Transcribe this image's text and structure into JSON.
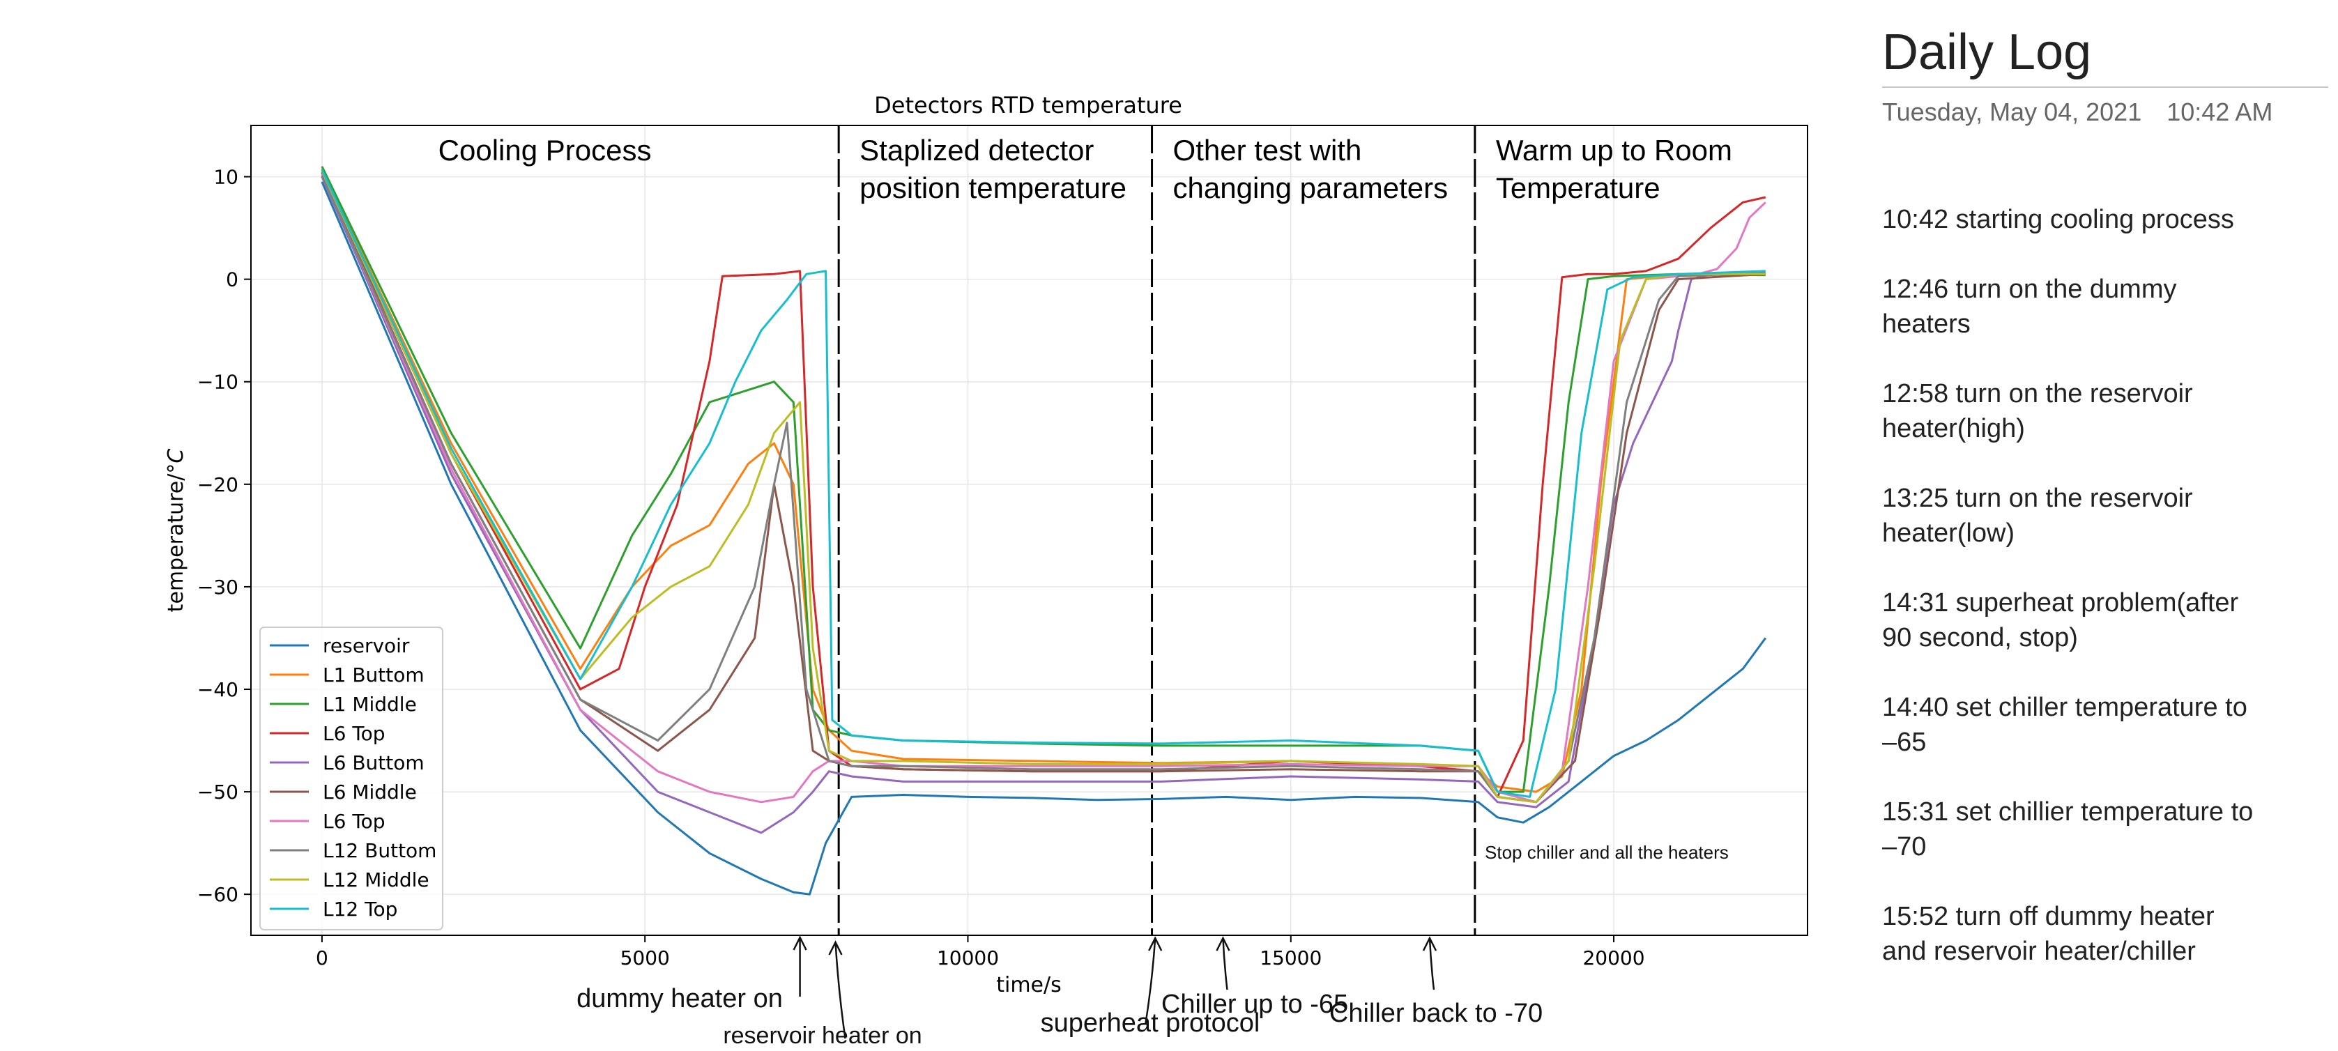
{
  "chart_data": {
    "type": "line",
    "title": "Detectors RTD temperature",
    "xlabel": "time/s",
    "ylabel": "temperature/$^\\circ C$",
    "xlim": [
      -1100,
      23000
    ],
    "ylim": [
      -64,
      15
    ],
    "xticks": [
      0,
      5000,
      10000,
      15000,
      20000
    ],
    "yticks": [
      10,
      0,
      -10,
      -20,
      -30,
      -40,
      -50,
      -60
    ],
    "grid": true,
    "legend_position": "lower-left",
    "series": [
      {
        "name": "reservoir",
        "color": "#1f77b4",
        "x": [
          0,
          2000,
          4000,
          5200,
          6000,
          6800,
          7300,
          7550,
          7800,
          8200,
          9000,
          10000,
          11000,
          12000,
          13000,
          14000,
          15000,
          16000,
          17000,
          17900,
          18200,
          18600,
          19000,
          19500,
          20000,
          20500,
          21000,
          21500,
          22000,
          22350
        ],
        "y": [
          9.5,
          -20,
          -44,
          -52,
          -56,
          -58.5,
          -59.8,
          -60,
          -55,
          -50.5,
          -50.3,
          -50.5,
          -50.6,
          -50.8,
          -50.7,
          -50.5,
          -50.8,
          -50.5,
          -50.6,
          -51,
          -52.5,
          -53,
          -51.5,
          -49,
          -46.5,
          -45,
          -43,
          -40.5,
          -38,
          -35
        ]
      },
      {
        "name": "L1 Buttom",
        "color": "#ff7f0e",
        "x": [
          0,
          2000,
          4000,
          4800,
          5400,
          6000,
          6600,
          7000,
          7300,
          7600,
          7850,
          8200,
          9000,
          11000,
          13000,
          15000,
          17000,
          17900,
          18200,
          18800,
          19200,
          19500,
          19800,
          20200,
          21000,
          22350
        ],
        "y": [
          10.8,
          -16,
          -38,
          -30,
          -26,
          -24,
          -18,
          -16,
          -20,
          -40,
          -44,
          -46,
          -46.8,
          -47,
          -47.2,
          -47,
          -47.5,
          -48,
          -49.5,
          -50,
          -48.5,
          -40,
          -20,
          0,
          0.5,
          0.5
        ]
      },
      {
        "name": "L1 Middle",
        "color": "#2ca02c",
        "x": [
          0,
          2000,
          4000,
          4800,
          5400,
          6000,
          6500,
          7000,
          7300,
          7600,
          7850,
          8200,
          9000,
          11000,
          13000,
          15000,
          17000,
          17900,
          18200,
          18600,
          19000,
          19300,
          19600,
          20000,
          21000,
          22350
        ],
        "y": [
          11,
          -15,
          -36,
          -25,
          -19,
          -12,
          -11,
          -10,
          -12,
          -42,
          -44,
          -44.5,
          -45,
          -45.3,
          -45.5,
          -45.5,
          -45.5,
          -46,
          -50,
          -50,
          -30,
          -12,
          0,
          0.3,
          0.5,
          0.4
        ]
      },
      {
        "name": "L6 Top",
        "color": "#d62728",
        "x": [
          0,
          2000,
          4000,
          4600,
          5000,
          5500,
          6000,
          6200,
          7000,
          7400,
          7600,
          7850,
          8200,
          9000,
          11000,
          13000,
          15000,
          17000,
          17900,
          18200,
          18600,
          18900,
          19200,
          19600,
          20000,
          20500,
          21000,
          21500,
          22000,
          22350
        ],
        "y": [
          10.5,
          -17,
          -40,
          -38,
          -30,
          -22,
          -8,
          0.3,
          0.5,
          0.8,
          -30,
          -46,
          -47.5,
          -47.8,
          -48,
          -48,
          -47,
          -47.5,
          -48,
          -50.5,
          -45,
          -20,
          0.2,
          0.5,
          0.5,
          0.8,
          2,
          5,
          7.5,
          8
        ]
      },
      {
        "name": "L6 Buttom",
        "color": "#9467bd",
        "x": [
          0,
          2000,
          4000,
          5200,
          6000,
          6800,
          7300,
          7600,
          7850,
          8200,
          9000,
          11000,
          13000,
          15000,
          17000,
          17900,
          18200,
          18800,
          19300,
          19700,
          20000,
          20300,
          20600,
          20900,
          21000,
          21200,
          21500,
          22350
        ],
        "y": [
          10,
          -19,
          -42,
          -50,
          -52,
          -54,
          -52,
          -50,
          -48,
          -48.5,
          -49,
          -49,
          -49,
          -48.5,
          -48.8,
          -49,
          -51,
          -51.5,
          -49,
          -35,
          -22,
          -16,
          -12,
          -8,
          -5,
          0,
          0.5,
          0.5
        ]
      },
      {
        "name": "L6 Middle",
        "color": "#8c564b",
        "x": [
          0,
          2000,
          4000,
          5200,
          6000,
          6700,
          7000,
          7300,
          7600,
          7850,
          8200,
          9000,
          11000,
          13000,
          15000,
          17000,
          17900,
          18200,
          18800,
          19400,
          19800,
          20200,
          20700,
          21000,
          22350
        ],
        "y": [
          10.4,
          -18,
          -41,
          -46,
          -42,
          -35,
          -20,
          -30,
          -46,
          -47,
          -47.5,
          -47.8,
          -48,
          -48,
          -47.8,
          -48,
          -48,
          -50.5,
          -51,
          -47,
          -32,
          -15,
          -3,
          0,
          0.5
        ]
      },
      {
        "name": "L6 Top",
        "color": "#e377c2",
        "x": [
          0,
          2000,
          4000,
          5200,
          6000,
          6800,
          7300,
          7600,
          7850,
          8200,
          9000,
          11000,
          13000,
          15000,
          17000,
          17900,
          18200,
          18800,
          19200,
          19600,
          20000,
          20500,
          21000,
          21300,
          21600,
          21900,
          22100,
          22350
        ],
        "y": [
          10.2,
          -18.5,
          -42,
          -48,
          -50,
          -51,
          -50.5,
          -48,
          -47,
          -47,
          -47.5,
          -47.5,
          -47.5,
          -47.3,
          -47.5,
          -47.5,
          -50,
          -51,
          -48,
          -30,
          -8,
          0,
          0.3,
          0.5,
          1,
          3,
          6,
          7.5
        ]
      },
      {
        "name": "L12 Buttom",
        "color": "#7f7f7f",
        "x": [
          0,
          2000,
          4000,
          5200,
          6000,
          6700,
          7000,
          7200,
          7500,
          7850,
          8200,
          9000,
          11000,
          13000,
          15000,
          17000,
          17900,
          18200,
          18800,
          19300,
          19700,
          20200,
          20700,
          21000,
          22350
        ],
        "y": [
          10.1,
          -18,
          -41,
          -45,
          -40,
          -30,
          -20,
          -14,
          -40,
          -47,
          -47.5,
          -47.5,
          -47.8,
          -47.8,
          -47.5,
          -47.8,
          -48,
          -50.5,
          -51,
          -47,
          -35,
          -12,
          -2,
          0.3,
          0.6
        ]
      },
      {
        "name": "L12 Middle",
        "color": "#bcbd22",
        "x": [
          0,
          2000,
          4000,
          4800,
          5400,
          6000,
          6600,
          7000,
          7400,
          7600,
          7850,
          8200,
          9000,
          11000,
          13000,
          15000,
          17000,
          17900,
          18200,
          18800,
          19300,
          19700,
          20100,
          20500,
          21000,
          22350
        ],
        "y": [
          10.6,
          -17,
          -39,
          -33,
          -30,
          -28,
          -22,
          -15,
          -12,
          -36,
          -46,
          -47,
          -47,
          -47.3,
          -47.3,
          -47,
          -47.3,
          -47.5,
          -50.5,
          -51,
          -47,
          -28,
          -6,
          0,
          0.5,
          0.5
        ]
      },
      {
        "name": "L12 Top",
        "color": "#17becf",
        "x": [
          0,
          2000,
          4000,
          4800,
          5400,
          6000,
          6400,
          6800,
          7200,
          7500,
          7800,
          7900,
          8200,
          9000,
          11000,
          13000,
          15000,
          17000,
          17900,
          18200,
          18700,
          19100,
          19500,
          19900,
          20300,
          21000,
          22350
        ],
        "y": [
          10.7,
          -16.5,
          -39,
          -30,
          -22,
          -16,
          -10,
          -5,
          -2,
          0.5,
          0.8,
          -43,
          -44.5,
          -45,
          -45.2,
          -45.3,
          -45,
          -45.5,
          -46,
          -50,
          -50.5,
          -40,
          -15,
          -1,
          0.2,
          0.5,
          0.8
        ]
      }
    ],
    "vlines": [
      {
        "x": 8000,
        "style": "dashed"
      },
      {
        "x": 12850,
        "style": "dashed"
      },
      {
        "x": 17850,
        "style": "dashed"
      }
    ],
    "region_labels": [
      {
        "lines": [
          "Cooling Process"
        ]
      },
      {
        "lines": [
          "Staplized detector",
          "position temperature"
        ]
      },
      {
        "lines": [
          "Other test with",
          "changing parameters"
        ]
      },
      {
        "lines": [
          "Warm up to Room",
          "Temperature"
        ]
      }
    ],
    "inside_annotation": "Stop chiller and all the heaters",
    "annotations": [
      {
        "text": "dummy heater on",
        "x": 7400
      },
      {
        "text": "reservoir heater on",
        "x": 7950
      },
      {
        "text": "superheat protocol",
        "x": 12900
      },
      {
        "text": "Chiller up to -65",
        "x": 13950
      },
      {
        "text": "Chiller back to -70",
        "x": 17150
      }
    ]
  },
  "daily_log": {
    "title": "Daily Log",
    "date": "Tuesday, May 04, 2021",
    "time": "10:42 AM",
    "entries": [
      {
        "lines": [
          "10:42  starting cooling process"
        ]
      },
      {
        "lines": [
          "12:46 turn on the dummy",
          "heaters"
        ]
      },
      {
        "lines": [
          "12:58 turn on the reservoir",
          "heater(high)"
        ]
      },
      {
        "lines": [
          "13:25 turn on the reservoir",
          "heater(low)"
        ]
      },
      {
        "lines": [
          "14:31 superheat problem(after",
          "90 second, stop)"
        ]
      },
      {
        "lines": [
          "14:40 set chiller temperature to",
          "–65"
        ]
      },
      {
        "lines": [
          "15:31 set chillier temperature to",
          "–70"
        ]
      },
      {
        "lines": [
          "15:52  turn off dummy heater",
          "and reservoir heater/chiller"
        ]
      }
    ]
  }
}
